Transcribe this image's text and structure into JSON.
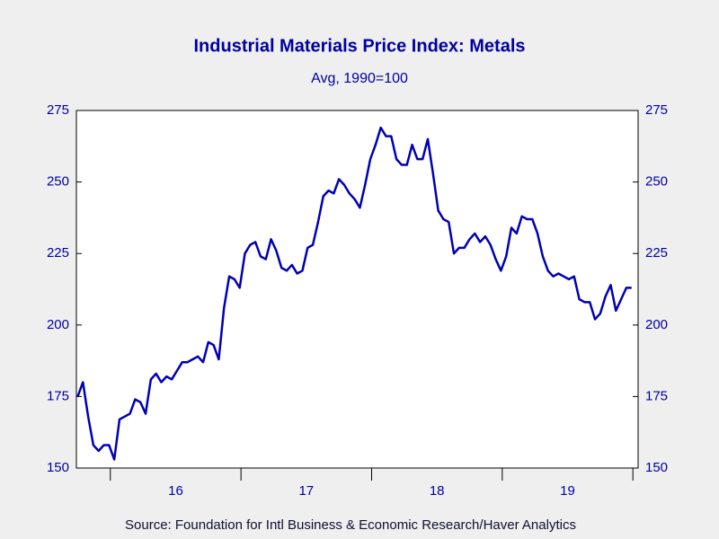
{
  "chart_data": {
    "type": "line",
    "title": "Industrial Materials Price Index: Metals",
    "subtitle": "Avg, 1990=100",
    "source": "Source:  Foundation for Intl Business & Economic Research/Haver Analytics",
    "x": [
      2015.75,
      2015.79,
      2015.83,
      2015.87,
      2015.91,
      2015.95,
      2015.99,
      2016.03,
      2016.07,
      2016.11,
      2016.15,
      2016.19,
      2016.23,
      2016.27,
      2016.31,
      2016.35,
      2016.39,
      2016.43,
      2016.47,
      2016.51,
      2016.55,
      2016.59,
      2016.63,
      2016.67,
      2016.71,
      2016.75,
      2016.79,
      2016.83,
      2016.87,
      2016.91,
      2016.95,
      2016.99,
      2017.03,
      2017.07,
      2017.11,
      2017.15,
      2017.19,
      2017.23,
      2017.27,
      2017.31,
      2017.35,
      2017.39,
      2017.43,
      2017.47,
      2017.51,
      2017.55,
      2017.59,
      2017.63,
      2017.67,
      2017.71,
      2017.75,
      2017.79,
      2017.83,
      2017.87,
      2017.91,
      2017.95,
      2017.99,
      2018.03,
      2018.07,
      2018.11,
      2018.15,
      2018.19,
      2018.23,
      2018.27,
      2018.31,
      2018.35,
      2018.39,
      2018.43,
      2018.47,
      2018.51,
      2018.55,
      2018.59,
      2018.63,
      2018.67,
      2018.71,
      2018.75,
      2018.79,
      2018.83,
      2018.87,
      2018.91,
      2018.95,
      2018.99,
      2019.03,
      2019.07,
      2019.11,
      2019.15,
      2019.19,
      2019.23,
      2019.27,
      2019.31,
      2019.35,
      2019.39,
      2019.43,
      2019.47,
      2019.51,
      2019.55,
      2019.59,
      2019.63,
      2019.67,
      2019.71,
      2019.75,
      2019.79,
      2019.83,
      2019.87,
      2019.91,
      2019.95,
      2019.99
    ],
    "series": [
      {
        "name": "Metals",
        "color": "#0000b4",
        "values": [
          175,
          180,
          168,
          158,
          156,
          158,
          158,
          153,
          167,
          168,
          169,
          174,
          173,
          169,
          181,
          183,
          180,
          182,
          181,
          184,
          187,
          187,
          188,
          189,
          187,
          194,
          193,
          188,
          206,
          217,
          216,
          213,
          225,
          228,
          229,
          224,
          223,
          230,
          226,
          220,
          219,
          221,
          218,
          219,
          227,
          228,
          236,
          245,
          247,
          246,
          251,
          249,
          246,
          244,
          241,
          249,
          258,
          263,
          269,
          266,
          266,
          258,
          256,
          256,
          263,
          258,
          258,
          265,
          253,
          240,
          237,
          236,
          225,
          227,
          227,
          230,
          232,
          229,
          231,
          228,
          223,
          219,
          224,
          234,
          232,
          238,
          237,
          237,
          232,
          224,
          219,
          217,
          218,
          217,
          216,
          217,
          209,
          208,
          208,
          202,
          204,
          210,
          214,
          205,
          209,
          213,
          213
        ]
      }
    ],
    "xlim": [
      2015.74,
      2020.04
    ],
    "xticks": [
      2016,
      2017,
      2018,
      2019,
      2020
    ],
    "xtick_labels": [
      {
        "value": 2016.5,
        "label": "16"
      },
      {
        "value": 2017.5,
        "label": "17"
      },
      {
        "value": 2018.5,
        "label": "18"
      },
      {
        "value": 2019.5,
        "label": "19"
      }
    ],
    "ylim": [
      150,
      275
    ],
    "yticks": [
      150,
      175,
      200,
      225,
      250,
      275
    ],
    "y2lim": [
      150,
      275
    ],
    "y2ticks": [
      150,
      175,
      200,
      225,
      250,
      275
    ],
    "grid": false
  }
}
